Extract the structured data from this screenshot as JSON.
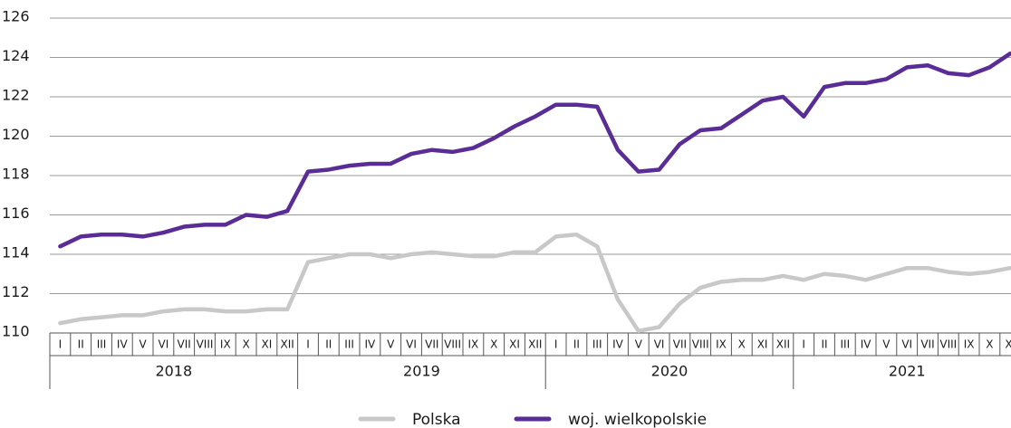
{
  "chart_data": {
    "type": "line",
    "categories": [
      "I",
      "II",
      "III",
      "IV",
      "V",
      "VI",
      "VII",
      "VIII",
      "IX",
      "X",
      "XI",
      "XII",
      "I",
      "II",
      "III",
      "IV",
      "V",
      "VI",
      "VII",
      "VIII",
      "IX",
      "X",
      "XI",
      "XII",
      "I",
      "II",
      "III",
      "IV",
      "V",
      "VI",
      "VII",
      "VIII",
      "IX",
      "X",
      "XI",
      "XII",
      "I",
      "II",
      "III",
      "IV",
      "V",
      "VI",
      "VII",
      "VIII",
      "IX",
      "X",
      "XI"
    ],
    "years": [
      "2018",
      "2019",
      "2020",
      "2021"
    ],
    "series": [
      {
        "name": "Polska",
        "color": "#c8c8c8",
        "values": [
          110.5,
          110.7,
          110.8,
          110.9,
          110.9,
          111.1,
          111.2,
          111.2,
          111.1,
          111.1,
          111.2,
          111.2,
          113.6,
          113.8,
          114.0,
          114.0,
          113.8,
          114.0,
          114.1,
          114.0,
          113.9,
          113.9,
          114.1,
          114.1,
          114.9,
          115.0,
          114.4,
          111.7,
          110.1,
          110.3,
          111.5,
          112.3,
          112.6,
          112.7,
          112.7,
          112.9,
          112.7,
          113.0,
          112.9,
          112.7,
          113.0,
          113.3,
          113.3,
          113.1,
          113.0,
          113.1,
          113.3
        ]
      },
      {
        "name": "woj. wielkopolskie",
        "color": "#5a2c96",
        "values": [
          114.4,
          114.9,
          115.0,
          115.0,
          114.9,
          115.1,
          115.4,
          115.5,
          115.5,
          116.0,
          115.9,
          116.2,
          118.2,
          118.3,
          118.5,
          118.6,
          118.6,
          119.1,
          119.3,
          119.2,
          119.4,
          119.9,
          120.5,
          121.0,
          121.6,
          121.6,
          121.5,
          119.3,
          118.2,
          118.3,
          119.6,
          120.3,
          120.4,
          121.1,
          121.8,
          122.0,
          121.0,
          122.5,
          122.7,
          122.7,
          122.9,
          123.5,
          123.6,
          123.2,
          123.1,
          123.5,
          124.2
        ]
      }
    ],
    "ylim": [
      110,
      126
    ],
    "yticks": [
      110,
      112,
      114,
      116,
      118,
      120,
      122,
      124,
      126
    ],
    "grid": true
  }
}
